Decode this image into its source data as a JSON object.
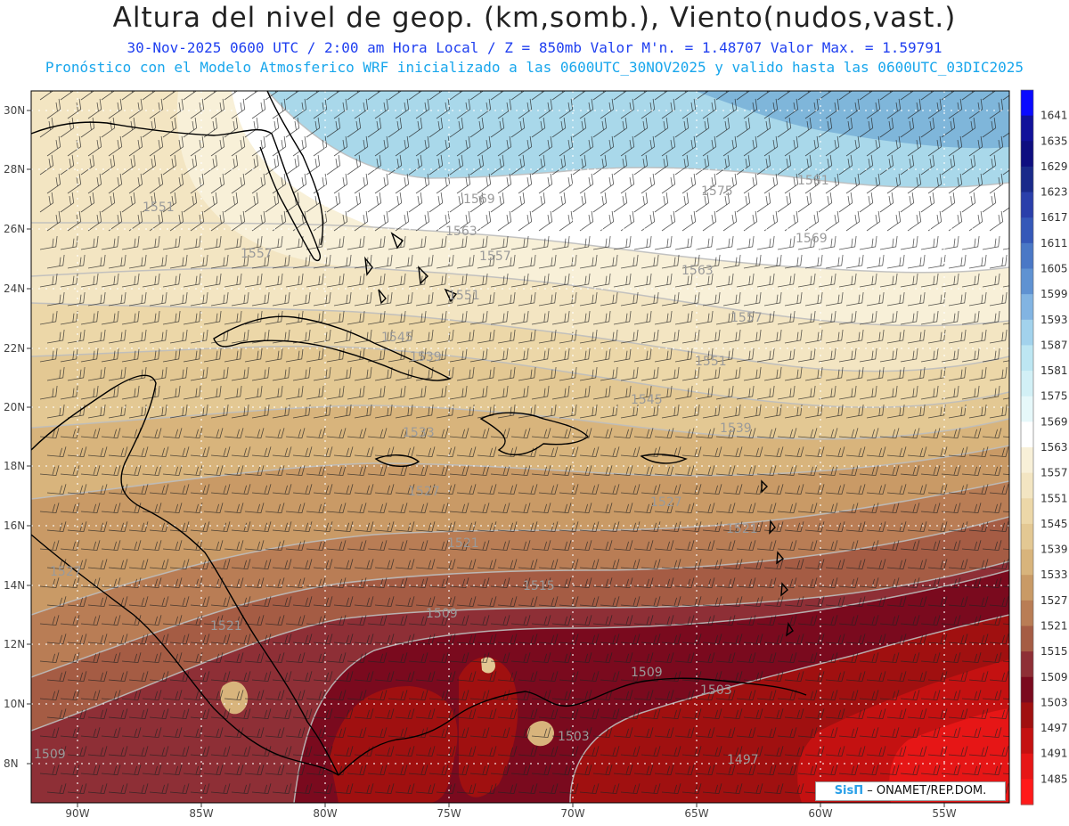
{
  "title": "Altura del nivel de geop. (km,somb.), Viento(nudos,vast.)",
  "subtitle_line1": "30-Nov-2025  0600 UTC / 2:00 am Hora Local / Z = 850mb    Valor M'n. = 1.48707  Valor Max. = 1.59791",
  "subtitle_line2": "Pronóstico con el Modelo Atmosferico WRF inicializado a las 0600UTC_30NOV2025 y valido hasta las  0600UTC_03DIC2025",
  "lat_labels": [
    "30N",
    "28N",
    "26N",
    "24N",
    "22N",
    "20N",
    "18N",
    "16N",
    "14N",
    "12N",
    "10N",
    "8N"
  ],
  "lon_labels": [
    "90W",
    "85W",
    "80W",
    "75W",
    "70W",
    "65W",
    "60W",
    "55W"
  ],
  "colorbar_labels": [
    "1641",
    "1635",
    "1629",
    "1623",
    "1617",
    "1611",
    "1605",
    "1599",
    "1593",
    "1587",
    "1581",
    "1575",
    "1569",
    "1563",
    "1557",
    "1551",
    "1545",
    "1539",
    "1533",
    "1527",
    "1521",
    "1515",
    "1509",
    "1503",
    "1497",
    "1491",
    "1485"
  ],
  "colorbar_colors": [
    "#0a0aff",
    "#11119a",
    "#0e0e80",
    "#1a2a8a",
    "#2a3faa",
    "#3558b8",
    "#4a78c6",
    "#5f92d2",
    "#82b4e2",
    "#a2d2ec",
    "#bde6f2",
    "#d2f0f6",
    "#e6f8fa",
    "#ffffff",
    "#f8f0d8",
    "#f3e5c2",
    "#ecd7a8",
    "#e3c893",
    "#d8b47c",
    "#c99a66",
    "#b97d55",
    "#a55c44",
    "#8e2f36",
    "#7a0a1e",
    "#a01010",
    "#c41111",
    "#e61616",
    "#ff1a1a"
  ],
  "contour_labels": [
    "1581",
    "1575",
    "1569",
    "1569",
    "1563",
    "1563",
    "1557",
    "1557",
    "1557",
    "1551",
    "1551",
    "1551",
    "1545",
    "1545",
    "1539",
    "1539",
    "1533",
    "1527",
    "1527",
    "1521",
    "1521",
    "1521",
    "1515",
    "1509",
    "1509",
    "1509",
    "1503",
    "1503",
    "1497",
    "1527"
  ],
  "badge": {
    "logo": "SisΠ",
    "org": "– ONAMET/REP.DOM."
  }
}
